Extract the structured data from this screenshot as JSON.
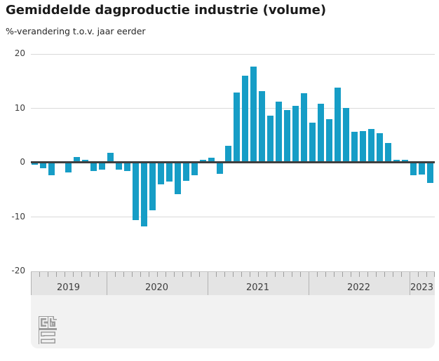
{
  "header": {
    "title": "Gemiddelde dagproductie industrie (volume)",
    "subtitle": "%-verandering t.o.v. jaar eerder"
  },
  "chart_data": {
    "type": "bar",
    "title": "Gemiddelde dagproductie industrie (volume)",
    "ylabel": "%-verandering t.o.v. jaar eerder",
    "unit": "%",
    "ylim": [
      -20,
      20
    ],
    "yticks": [
      20,
      10,
      0,
      -10,
      -20
    ],
    "ytick_labels": [
      "20",
      "10",
      "0",
      "-10",
      "-20"
    ],
    "grid": "horizontal",
    "legend": "none",
    "bar_color": "#169dc6",
    "zero_line_color": "#3f3f3f",
    "grid_color": "#d9d9d9",
    "x": [
      "2019-04",
      "2019-05",
      "2019-06",
      "2019-07",
      "2019-08",
      "2019-09",
      "2019-10",
      "2019-11",
      "2019-12",
      "2020-01",
      "2020-02",
      "2020-03",
      "2020-04",
      "2020-05",
      "2020-06",
      "2020-07",
      "2020-08",
      "2020-09",
      "2020-10",
      "2020-11",
      "2020-12",
      "2021-01",
      "2021-02",
      "2021-03",
      "2021-04",
      "2021-05",
      "2021-06",
      "2021-07",
      "2021-08",
      "2021-09",
      "2021-10",
      "2021-11",
      "2021-12",
      "2022-01",
      "2022-02",
      "2022-03",
      "2022-04",
      "2022-05",
      "2022-06",
      "2022-07",
      "2022-08",
      "2022-09",
      "2022-10",
      "2022-11",
      "2022-12",
      "2023-01",
      "2023-02",
      "2023-03"
    ],
    "values": [
      -0.5,
      -1.1,
      -2.4,
      0,
      -1.9,
      1.0,
      0.5,
      -1.6,
      -1.3,
      1.7,
      -1.3,
      -1.6,
      -10.6,
      -11.8,
      -8.9,
      -4.0,
      -3.5,
      -5.9,
      -3.4,
      -2.4,
      0.4,
      0.9,
      -2.1,
      3.0,
      12.8,
      16.0,
      17.6,
      13.1,
      8.6,
      11.1,
      9.6,
      10.4,
      12.7,
      7.3,
      10.8,
      7.9,
      13.7,
      10.0,
      5.6,
      5.7,
      6.1,
      5.4,
      3.6,
      0.5,
      0.4,
      -2.4,
      -2.2,
      -3.8
    ],
    "x_axis_years": [
      {
        "label": "2019",
        "months": 9
      },
      {
        "label": "2020",
        "months": 12
      },
      {
        "label": "2021",
        "months": 12
      },
      {
        "label": "2022",
        "months": 12
      },
      {
        "label": "2023",
        "months": 3
      }
    ]
  },
  "footer": {
    "logo": "cbs-logo"
  }
}
